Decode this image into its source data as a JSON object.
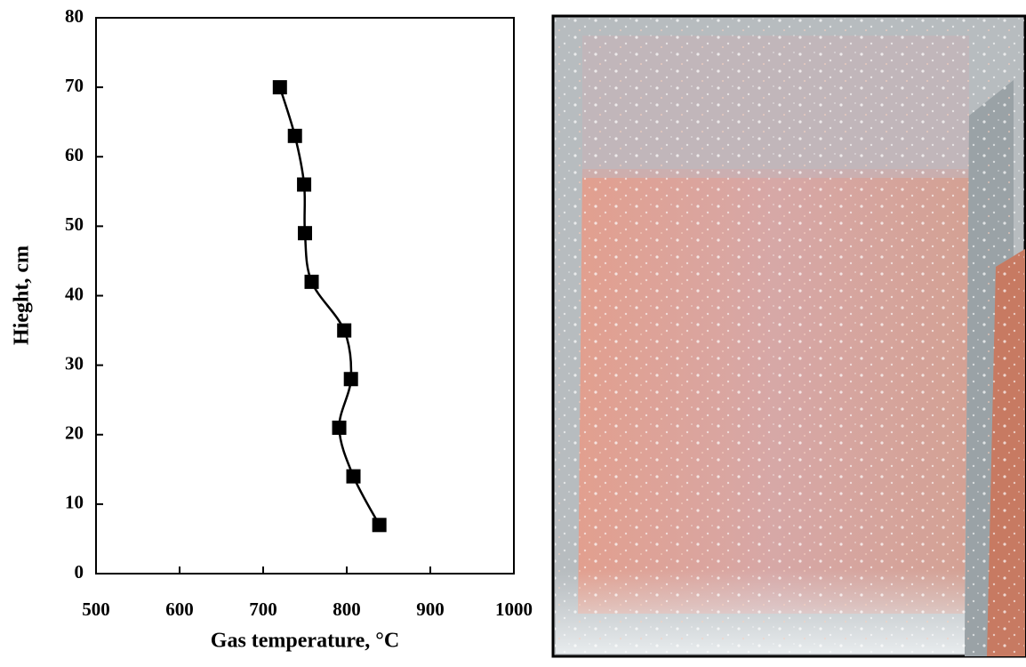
{
  "chart_data": {
    "type": "line",
    "x_label": "Gas temperature, °C",
    "y_label": "Hieght, cm",
    "x": [
      720,
      738,
      749,
      750,
      758,
      797,
      805,
      791,
      808,
      839
    ],
    "values": [
      70,
      63,
      56,
      49,
      42,
      35,
      28,
      21,
      14,
      7
    ],
    "color": "#000000",
    "marker": "square",
    "xlim": [
      500,
      1000
    ],
    "xticks": [
      500,
      600,
      700,
      800,
      900,
      1000
    ],
    "ylim": [
      0,
      80
    ],
    "yticks": [
      0,
      10,
      20,
      30,
      40,
      50,
      60,
      70,
      80
    ],
    "grid": false
  }
}
